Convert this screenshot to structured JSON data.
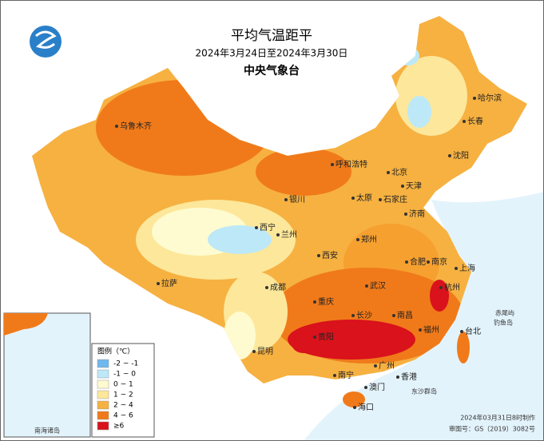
{
  "header": {
    "title": "平均气温距平",
    "date_range": "2024年3月24日至2024年3月30日",
    "agency": "中央气象台"
  },
  "legend": {
    "title": "图例（℃）",
    "items": [
      {
        "label": "-2 ~ -1",
        "color": "#6fb7ee"
      },
      {
        "label": "-1 ~ 0",
        "color": "#bde8f7"
      },
      {
        "label": "0 ~ 1",
        "color": "#fffbd0"
      },
      {
        "label": "1 ~ 2",
        "color": "#fde79a"
      },
      {
        "label": "2 ~ 4",
        "color": "#f6b141"
      },
      {
        "label": "4 ~ 6",
        "color": "#f07a1a"
      },
      {
        "label": "≥6",
        "color": "#d9121b"
      }
    ]
  },
  "cities": [
    "乌鲁木齐",
    "哈尔滨",
    "长春",
    "沈阳",
    "呼和浩特",
    "北京",
    "天津",
    "银川",
    "太原",
    "石家庄",
    "西宁",
    "兰州",
    "济南",
    "郑州",
    "西安",
    "合肥",
    "南京",
    "上海",
    "拉萨",
    "成都",
    "武汉",
    "杭州",
    "重庆",
    "长沙",
    "南昌",
    "贵阳",
    "福州",
    "台北",
    "昆明",
    "南宁",
    "广州",
    "香港",
    "澳门",
    "海口"
  ],
  "islands": [
    "东沙群岛",
    "赤尾屿",
    "钓鱼岛"
  ],
  "inset": {
    "label": "南海诸岛"
  },
  "footer": {
    "made": "2024年03月31日8时制作",
    "approval": "审图号：GS（2019）3082号"
  }
}
